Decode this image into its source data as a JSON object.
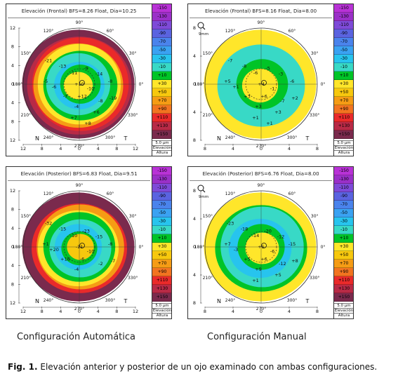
{
  "legend": {
    "values": [
      "-150",
      "-130",
      "-110",
      "-90",
      "-70",
      "-50",
      "-30",
      "-10",
      "+10",
      "+30",
      "+50",
      "+70",
      "+90",
      "+110",
      "+130",
      "+150"
    ],
    "colors": [
      "#b832d6",
      "#9a30c8",
      "#7e4ad8",
      "#5a63e0",
      "#4a83ec",
      "#3aa2f2",
      "#27c4ee",
      "#38d9c6",
      "#00c427",
      "#ffe62a",
      "#f7c80e",
      "#f59c15",
      "#f27420",
      "#ea2a2a",
      "#b82a46",
      "#7a2a4d"
    ],
    "unit": "5.0 μm",
    "type": "Elevación",
    "mode": "Altura"
  },
  "panels": [
    {
      "title": "Elevación (Frontal)  BFS=8.26 Float, Dia=10.25",
      "scale": "wide",
      "has_zoom": false,
      "angles": [
        "90°",
        "120°",
        "60°",
        "150°",
        "30°",
        "180°",
        "0°",
        "210°",
        "330°",
        "240°",
        "300°",
        "270°"
      ],
      "nasal": "N",
      "temporal": "T",
      "xticks": [
        "12",
        "8",
        "4",
        "0",
        "4",
        "8",
        "12"
      ],
      "yticks": [
        "12",
        "8",
        "4",
        "0",
        "4",
        "8",
        "12"
      ],
      "values": [
        "-21",
        "-13",
        "-11",
        "-9",
        "-14",
        "-8",
        "-10",
        "-8",
        "-6",
        "-7",
        "-4",
        "-19",
        "+10",
        "+12",
        "-5",
        "+6",
        "+7",
        "+8"
      ],
      "rings": [
        {
          "r": 1.0,
          "c": "#7a2a4d"
        },
        {
          "r": 0.93,
          "c": "#b82a46"
        },
        {
          "r": 0.86,
          "c": "#ea2a2a"
        },
        {
          "r": 0.8,
          "c": "#f59c15"
        },
        {
          "r": 0.74,
          "c": "#ffe62a"
        },
        {
          "r": 0.66,
          "c": "#00c427"
        },
        {
          "r": 0.57,
          "c": "#38d9c6"
        },
        {
          "r": 0.45,
          "c": "#27c4ee"
        },
        {
          "r": 0.36,
          "c": "#00c427"
        },
        {
          "r": 0.26,
          "c": "#ffe62a"
        }
      ]
    },
    {
      "title": "Elevación (Frontal)  BFS=8.16 Float, Dia=8.00",
      "scale": "narrow",
      "has_zoom": true,
      "zoom": "9mm",
      "angles": [
        "90°",
        "120°",
        "60°",
        "150°",
        "30°",
        "180°",
        "0°",
        "210°",
        "330°",
        "240°",
        "300°",
        "270°"
      ],
      "nasal": "N",
      "temporal": "T",
      "xticks": [
        "8",
        "4",
        "0",
        "4",
        "8"
      ],
      "yticks": [
        "8",
        "4",
        "0",
        "4",
        "8"
      ],
      "values": [
        "-7",
        "-8",
        "-6",
        "-5",
        "-3",
        "-6",
        "-1",
        "-7",
        "+1",
        "+3",
        "+3",
        "+2",
        "+4",
        "+6",
        "+5",
        "+3",
        "+1",
        "+1"
      ],
      "rings": [
        {
          "r": 1.0,
          "c": "#ffe62a"
        },
        {
          "r": 0.78,
          "c": "#38d9c6"
        },
        {
          "r": 0.46,
          "c": "#00c427"
        },
        {
          "r": 0.32,
          "c": "#ffe62a"
        }
      ]
    },
    {
      "title": "Elevación (Posterior)  BFS=6.83 Float, Dia=9.51",
      "scale": "wide",
      "has_zoom": false,
      "angles": [
        "90°",
        "120°",
        "60°",
        "150°",
        "30°",
        "180°",
        "0°",
        "210°",
        "330°",
        "240°",
        "300°",
        "270°"
      ],
      "nasal": "N",
      "temporal": "T",
      "xticks": [
        "12",
        "8",
        "4",
        "0",
        "4",
        "8",
        "12"
      ],
      "yticks": [
        "12",
        "8",
        "4",
        "0",
        "4",
        "8",
        "12"
      ],
      "values": [
        "-32",
        "-15",
        "-10",
        "-23",
        "-15",
        "-8",
        "-10",
        "-2",
        "+20",
        "+16",
        "-4",
        "-7",
        "-11",
        "-6",
        "+1"
      ],
      "rings": [
        {
          "r": 1.0,
          "c": "#7a2a4d"
        },
        {
          "r": 0.85,
          "c": "#ea2a2a"
        },
        {
          "r": 0.78,
          "c": "#f59c15"
        },
        {
          "r": 0.72,
          "c": "#ffe62a"
        },
        {
          "r": 0.64,
          "c": "#00c427"
        },
        {
          "r": 0.55,
          "c": "#38d9c6"
        },
        {
          "r": 0.42,
          "c": "#27c4ee"
        },
        {
          "r": 0.32,
          "c": "#00c427"
        },
        {
          "r": 0.24,
          "c": "#f7c80e"
        }
      ]
    },
    {
      "title": "Elevación (Posterior)  BFS=6.76 Float, Dia=8.00",
      "scale": "narrow",
      "has_zoom": true,
      "zoom": "9mm",
      "angles": [
        "90°",
        "120°",
        "60°",
        "150°",
        "30°",
        "180°",
        "0°",
        "210°",
        "330°",
        "240°",
        "300°",
        "270°"
      ],
      "nasal": "N",
      "temporal": "T",
      "xticks": [
        "8",
        "4",
        "0",
        "4",
        "8"
      ],
      "yticks": [
        "8",
        "4",
        "0",
        "4",
        "8"
      ],
      "values": [
        "-23",
        "-18",
        "-14",
        "-20",
        "-12",
        "-15",
        "-6",
        "-12",
        "-3",
        "+5",
        "+9",
        "+8",
        "+5",
        "+6",
        "+7",
        "+5",
        "+1"
      ],
      "rings": [
        {
          "r": 1.0,
          "c": "#ffe62a"
        },
        {
          "r": 0.82,
          "c": "#00c427"
        },
        {
          "r": 0.74,
          "c": "#38d9c6"
        },
        {
          "r": 0.56,
          "c": "#27c4ee"
        },
        {
          "r": 0.42,
          "c": "#00c427"
        },
        {
          "r": 0.3,
          "c": "#ffe62a"
        }
      ]
    }
  ],
  "captions": {
    "left": "Configuración Automática",
    "right": "Configuración Manual",
    "fig_label": "Fig. 1.",
    "fig_text": " Elevación anterior y posterior de un ojo examinado con ambas configuraciones."
  }
}
